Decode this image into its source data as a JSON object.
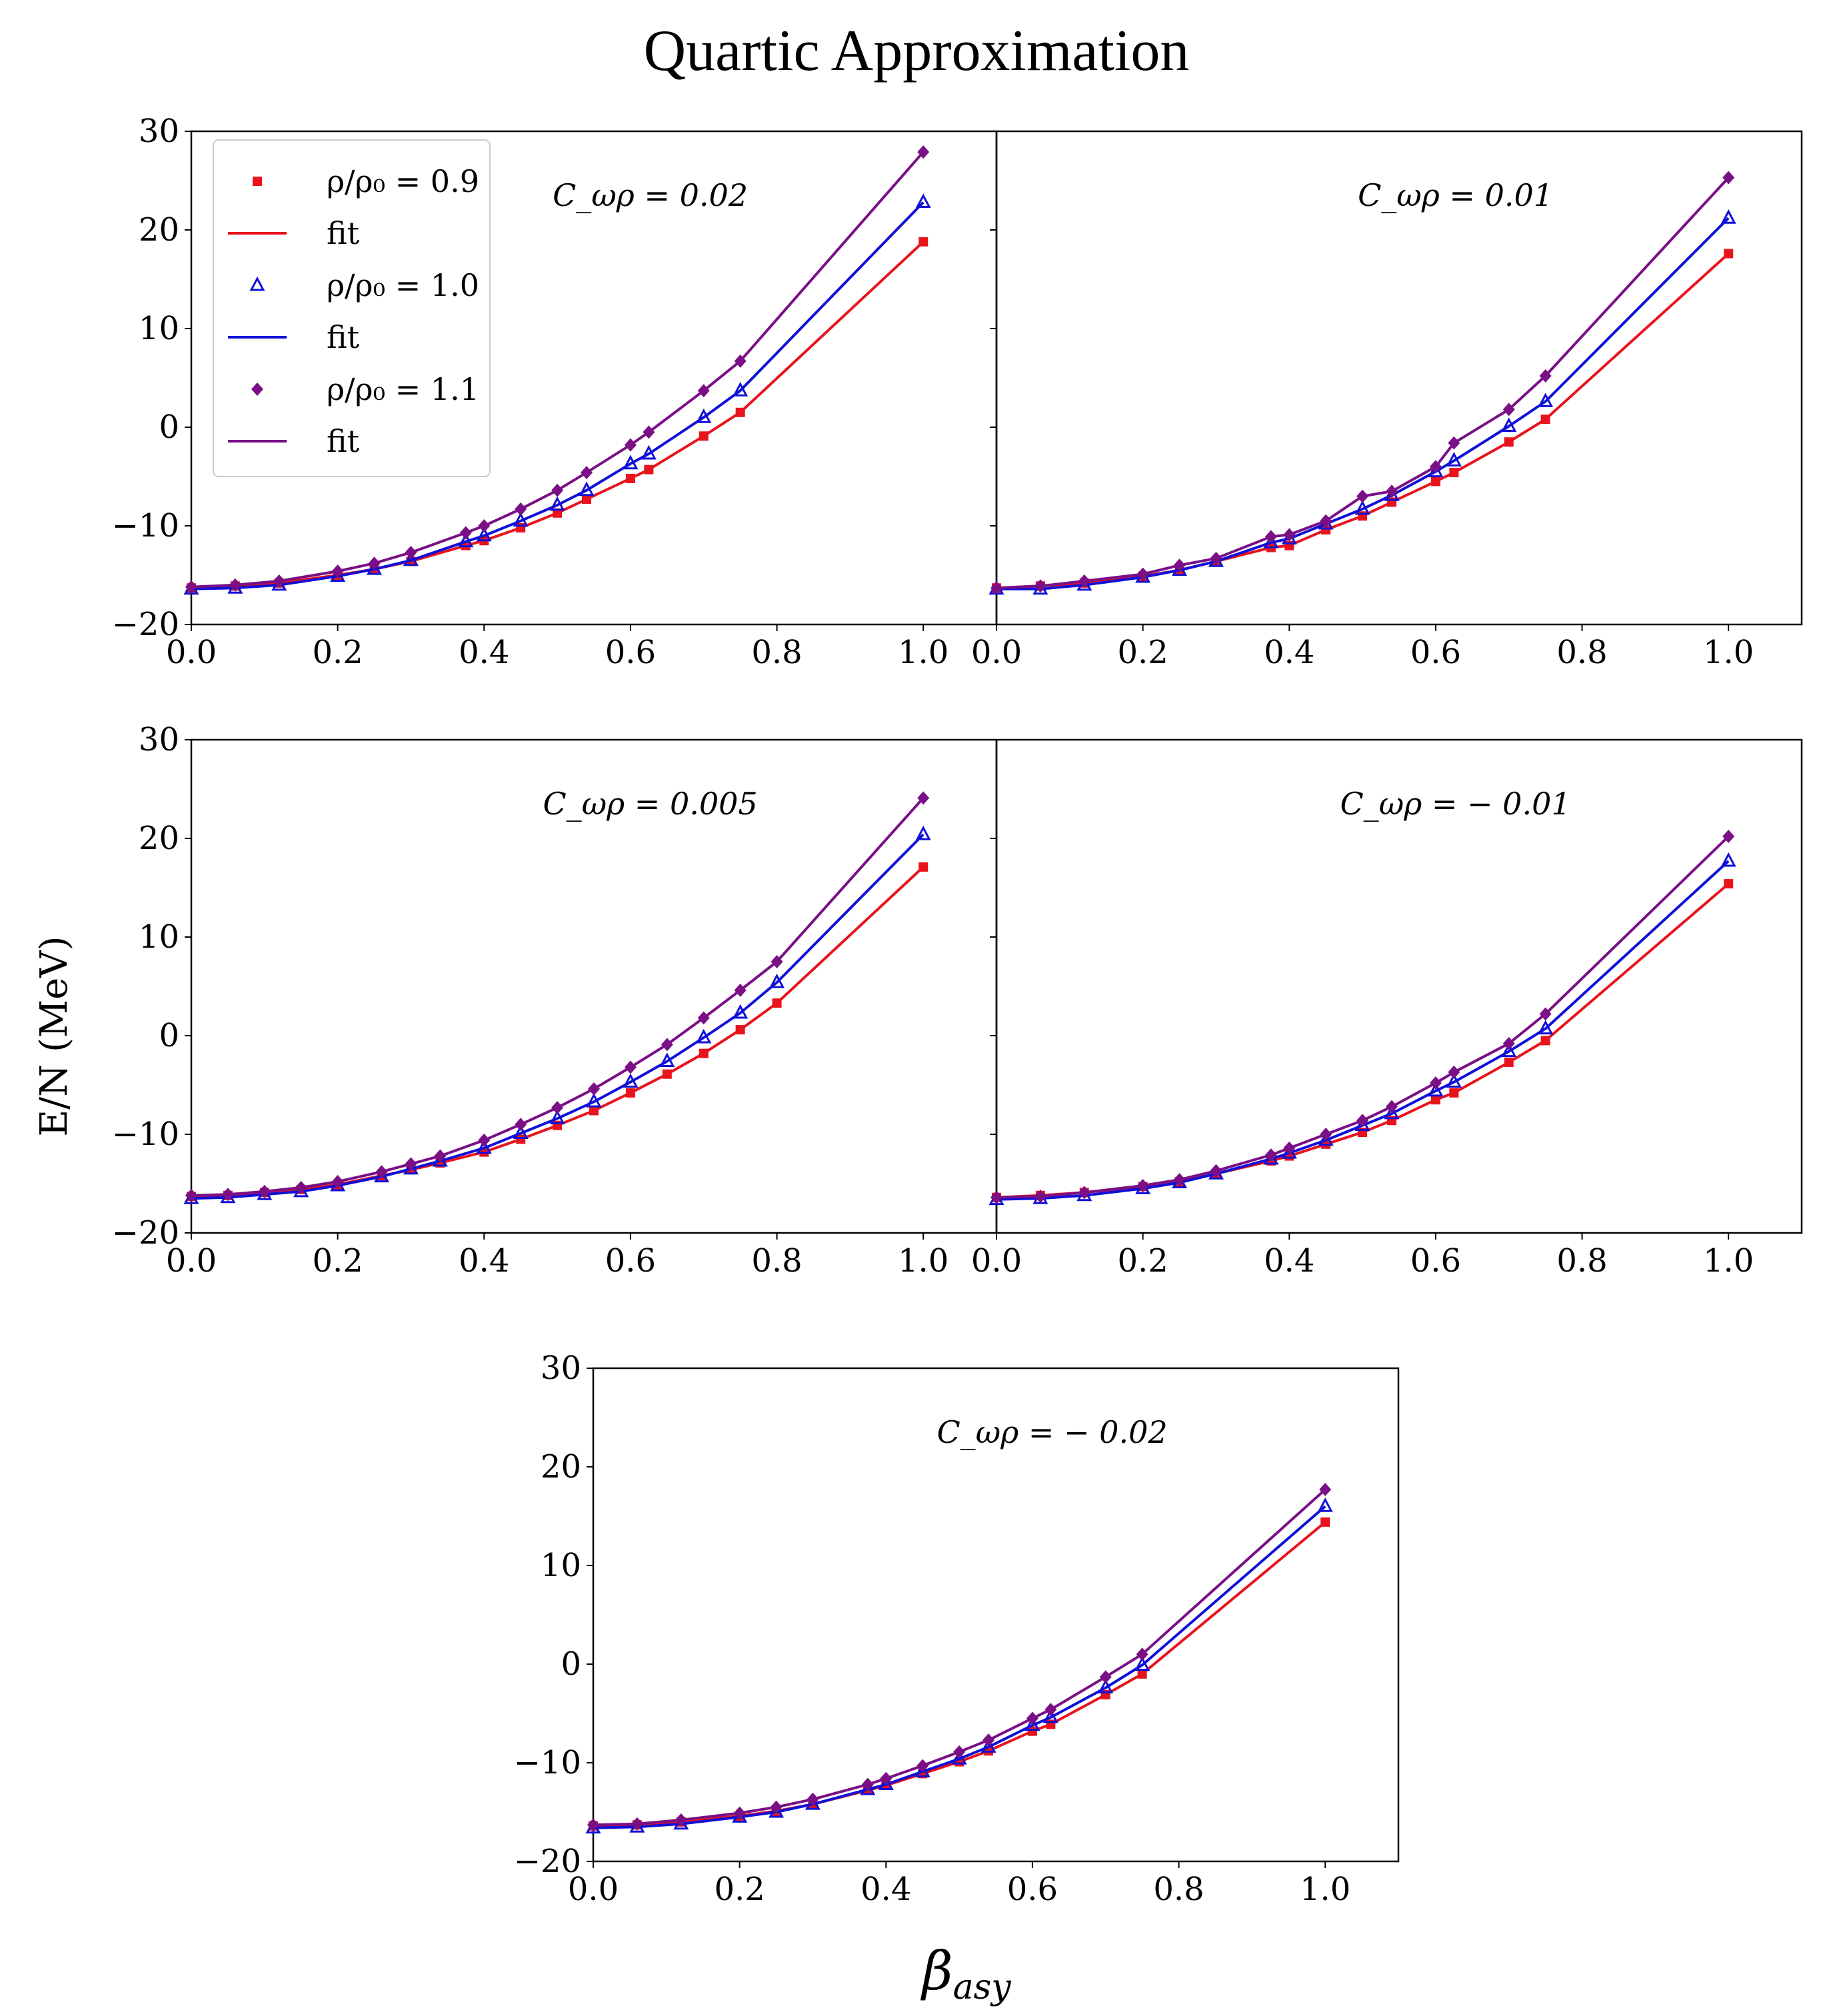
{
  "title": "Quartic Approximation",
  "ylabel": "E/N (MeV)",
  "xlabel_main": "β",
  "xlabel_sub": "asy",
  "legend": [
    {
      "label": "ρ/ρ₀ = 0.9",
      "marker": "square"
    },
    {
      "label": "fit",
      "marker": "line"
    },
    {
      "label": "ρ/ρ₀ = 1.0",
      "marker": "triangle"
    },
    {
      "label": "fit",
      "marker": "line"
    },
    {
      "label": "ρ/ρ₀ = 1.1",
      "marker": "diamond"
    },
    {
      "label": "fit",
      "marker": "line"
    }
  ],
  "colors": {
    "rho_0_9": "#e8131b",
    "rho_1_0": "#1010d8",
    "rho_1_1": "#7a0f86"
  },
  "chart_data": [
    {
      "type": "line",
      "annotation": "C_ωρ = 0.02",
      "xlim": [
        0,
        1.1
      ],
      "ylim": [
        -20,
        30
      ],
      "xticks": [
        "0.0",
        "0.2",
        "0.4",
        "0.6",
        "0.8",
        "1.0"
      ],
      "yticks": [
        "−20",
        "−10",
        "0",
        "10",
        "20",
        "30"
      ],
      "series": [
        {
          "name": "ρ/ρ0 = 0.9",
          "x": [
            0,
            0.06,
            0.12,
            0.2,
            0.25,
            0.3,
            0.375,
            0.4,
            0.45,
            0.5,
            0.54,
            0.6,
            0.625,
            0.7,
            0.75,
            1.0
          ],
          "y": [
            -16.3,
            -16.1,
            -15.8,
            -15.0,
            -14.4,
            -13.6,
            -12.0,
            -11.5,
            -10.2,
            -8.7,
            -7.3,
            -5.2,
            -4.3,
            -0.9,
            1.5,
            18.8
          ]
        },
        {
          "name": "ρ/ρ0 = 1.0",
          "x": [
            0,
            0.06,
            0.12,
            0.2,
            0.25,
            0.3,
            0.375,
            0.4,
            0.45,
            0.5,
            0.54,
            0.6,
            0.625,
            0.7,
            0.75,
            1.0
          ],
          "y": [
            -16.4,
            -16.3,
            -16.0,
            -15.1,
            -14.4,
            -13.5,
            -11.6,
            -11.0,
            -9.5,
            -7.9,
            -6.4,
            -3.7,
            -2.7,
            1.0,
            3.7,
            22.8
          ]
        },
        {
          "name": "ρ/ρ0 = 1.1",
          "x": [
            0,
            0.06,
            0.12,
            0.2,
            0.25,
            0.3,
            0.375,
            0.4,
            0.45,
            0.5,
            0.54,
            0.6,
            0.625,
            0.7,
            0.75,
            1.0
          ],
          "y": [
            -16.2,
            -16.0,
            -15.6,
            -14.6,
            -13.8,
            -12.7,
            -10.7,
            -10.0,
            -8.3,
            -6.4,
            -4.6,
            -1.8,
            -0.5,
            3.7,
            6.7,
            27.9
          ]
        }
      ]
    },
    {
      "type": "line",
      "annotation": "C_ωρ = 0.01",
      "xlim": [
        0,
        1.1
      ],
      "ylim": [
        -20,
        30
      ],
      "xticks": [
        "0.0",
        "0.2",
        "0.4",
        "0.6",
        "0.8",
        "1.0"
      ],
      "yticks": [],
      "series": [
        {
          "name": "ρ/ρ0 = 0.9",
          "x": [
            0,
            0.06,
            0.12,
            0.2,
            0.25,
            0.3,
            0.375,
            0.4,
            0.45,
            0.5,
            0.54,
            0.6,
            0.625,
            0.7,
            0.75,
            1.0
          ],
          "y": [
            -16.3,
            -16.1,
            -15.8,
            -15.1,
            -14.5,
            -13.6,
            -12.2,
            -12.0,
            -10.4,
            -9.0,
            -7.6,
            -5.5,
            -4.6,
            -1.5,
            0.8,
            17.6
          ]
        },
        {
          "name": "ρ/ρ0 = 1.0",
          "x": [
            0,
            0.06,
            0.12,
            0.2,
            0.25,
            0.3,
            0.375,
            0.4,
            0.45,
            0.5,
            0.54,
            0.6,
            0.625,
            0.7,
            0.75,
            1.0
          ],
          "y": [
            -16.4,
            -16.4,
            -16.0,
            -15.2,
            -14.5,
            -13.6,
            -11.7,
            -11.3,
            -9.8,
            -8.3,
            -6.9,
            -4.5,
            -3.4,
            0.1,
            2.6,
            21.2
          ]
        },
        {
          "name": "ρ/ρ0 = 1.1",
          "x": [
            0,
            0.06,
            0.12,
            0.2,
            0.25,
            0.3,
            0.375,
            0.4,
            0.45,
            0.5,
            0.54,
            0.6,
            0.625,
            0.7,
            0.75,
            1.0
          ],
          "y": [
            -16.3,
            -16.1,
            -15.6,
            -14.9,
            -14.0,
            -13.3,
            -11.1,
            -10.9,
            -9.5,
            -7.0,
            -6.5,
            -4.0,
            -1.6,
            1.8,
            5.2,
            25.3
          ]
        }
      ]
    },
    {
      "type": "line",
      "annotation": "C_ωρ = 0.005",
      "xlim": [
        0,
        1.1
      ],
      "ylim": [
        -20,
        30
      ],
      "xticks": [
        "0.0",
        "0.2",
        "0.4",
        "0.6",
        "0.8",
        "1.0"
      ],
      "yticks": [
        "−20",
        "−10",
        "0",
        "10",
        "20",
        "30"
      ],
      "series": [
        {
          "name": "ρ/ρ0 = 0.9",
          "x": [
            0,
            0.05,
            0.1,
            0.15,
            0.2,
            0.26,
            0.3,
            0.34,
            0.4,
            0.45,
            0.5,
            0.55,
            0.6,
            0.65,
            0.7,
            0.75,
            0.8,
            1.0
          ],
          "y": [
            -16.3,
            -16.2,
            -15.9,
            -15.6,
            -15.1,
            -14.2,
            -13.6,
            -12.9,
            -11.8,
            -10.5,
            -9.1,
            -7.6,
            -5.8,
            -3.9,
            -1.8,
            0.6,
            3.3,
            17.1
          ]
        },
        {
          "name": "ρ/ρ0 = 1.0",
          "x": [
            0,
            0.05,
            0.1,
            0.15,
            0.2,
            0.26,
            0.3,
            0.34,
            0.4,
            0.45,
            0.5,
            0.55,
            0.6,
            0.65,
            0.7,
            0.75,
            0.8,
            1.0
          ],
          "y": [
            -16.5,
            -16.4,
            -16.1,
            -15.8,
            -15.2,
            -14.3,
            -13.5,
            -12.7,
            -11.4,
            -9.9,
            -8.4,
            -6.7,
            -4.7,
            -2.6,
            -0.2,
            2.3,
            5.4,
            20.4
          ]
        },
        {
          "name": "ρ/ρ0 = 1.1",
          "x": [
            0,
            0.05,
            0.1,
            0.15,
            0.2,
            0.26,
            0.3,
            0.34,
            0.4,
            0.45,
            0.5,
            0.55,
            0.6,
            0.65,
            0.7,
            0.75,
            0.8,
            1.0
          ],
          "y": [
            -16.2,
            -16.1,
            -15.8,
            -15.4,
            -14.8,
            -13.8,
            -13.0,
            -12.2,
            -10.6,
            -9.0,
            -7.3,
            -5.4,
            -3.2,
            -0.9,
            1.8,
            4.6,
            7.5,
            24.1
          ]
        }
      ]
    },
    {
      "type": "line",
      "annotation": "C_ωρ = − 0.01",
      "xlim": [
        0,
        1.1
      ],
      "ylim": [
        -20,
        30
      ],
      "xticks": [
        "0.0",
        "0.2",
        "0.4",
        "0.6",
        "0.8",
        "1.0"
      ],
      "yticks": [],
      "series": [
        {
          "name": "ρ/ρ0 = 0.9",
          "x": [
            0,
            0.06,
            0.12,
            0.2,
            0.25,
            0.3,
            0.375,
            0.4,
            0.45,
            0.5,
            0.54,
            0.6,
            0.625,
            0.7,
            0.75,
            1.0
          ],
          "y": [
            -16.4,
            -16.2,
            -15.9,
            -15.3,
            -14.8,
            -14.0,
            -12.7,
            -12.2,
            -11.0,
            -9.8,
            -8.6,
            -6.5,
            -5.8,
            -2.7,
            -0.5,
            15.4
          ]
        },
        {
          "name": "ρ/ρ0 = 1.0",
          "x": [
            0,
            0.06,
            0.12,
            0.2,
            0.25,
            0.3,
            0.375,
            0.4,
            0.45,
            0.5,
            0.54,
            0.6,
            0.625,
            0.7,
            0.75,
            1.0
          ],
          "y": [
            -16.6,
            -16.5,
            -16.2,
            -15.5,
            -14.9,
            -14.0,
            -12.5,
            -11.9,
            -10.6,
            -9.1,
            -7.9,
            -5.6,
            -4.7,
            -1.6,
            0.7,
            17.7
          ]
        },
        {
          "name": "ρ/ρ0 = 1.1",
          "x": [
            0,
            0.06,
            0.12,
            0.2,
            0.25,
            0.3,
            0.375,
            0.4,
            0.45,
            0.5,
            0.54,
            0.6,
            0.625,
            0.7,
            0.75,
            1.0
          ],
          "y": [
            -16.4,
            -16.3,
            -15.9,
            -15.2,
            -14.6,
            -13.7,
            -12.1,
            -11.4,
            -10.0,
            -8.6,
            -7.2,
            -4.8,
            -3.7,
            -0.8,
            2.2,
            20.2
          ]
        }
      ]
    },
    {
      "type": "line",
      "annotation": "C_ωρ = − 0.02",
      "xlim": [
        0,
        1.1
      ],
      "ylim": [
        -20,
        30
      ],
      "xticks": [
        "0.0",
        "0.2",
        "0.4",
        "0.6",
        "0.8",
        "1.0"
      ],
      "yticks": [
        "−20",
        "−10",
        "0",
        "10",
        "20",
        "30"
      ],
      "series": [
        {
          "name": "ρ/ρ0 = 0.9",
          "x": [
            0,
            0.06,
            0.12,
            0.2,
            0.25,
            0.3,
            0.375,
            0.4,
            0.45,
            0.5,
            0.54,
            0.6,
            0.625,
            0.7,
            0.75,
            1.0
          ],
          "y": [
            -16.4,
            -16.3,
            -16.0,
            -15.4,
            -14.9,
            -14.2,
            -12.8,
            -12.3,
            -11.1,
            -9.9,
            -8.8,
            -6.8,
            -6.1,
            -3.1,
            -1.0,
            14.4
          ]
        },
        {
          "name": "ρ/ρ0 = 1.0",
          "x": [
            0,
            0.06,
            0.12,
            0.2,
            0.25,
            0.3,
            0.375,
            0.4,
            0.45,
            0.5,
            0.54,
            0.6,
            0.625,
            0.7,
            0.75,
            1.0
          ],
          "y": [
            -16.6,
            -16.5,
            -16.2,
            -15.5,
            -15.0,
            -14.2,
            -12.7,
            -12.2,
            -10.9,
            -9.6,
            -8.4,
            -6.2,
            -5.4,
            -2.4,
            -0.1,
            16.0
          ]
        },
        {
          "name": "ρ/ρ0 = 1.1",
          "x": [
            0,
            0.06,
            0.12,
            0.2,
            0.25,
            0.3,
            0.375,
            0.4,
            0.45,
            0.5,
            0.54,
            0.6,
            0.625,
            0.7,
            0.75,
            1.0
          ],
          "y": [
            -16.3,
            -16.2,
            -15.8,
            -15.1,
            -14.5,
            -13.7,
            -12.2,
            -11.6,
            -10.3,
            -8.9,
            -7.7,
            -5.5,
            -4.6,
            -1.3,
            1.0,
            17.7
          ]
        }
      ]
    }
  ]
}
